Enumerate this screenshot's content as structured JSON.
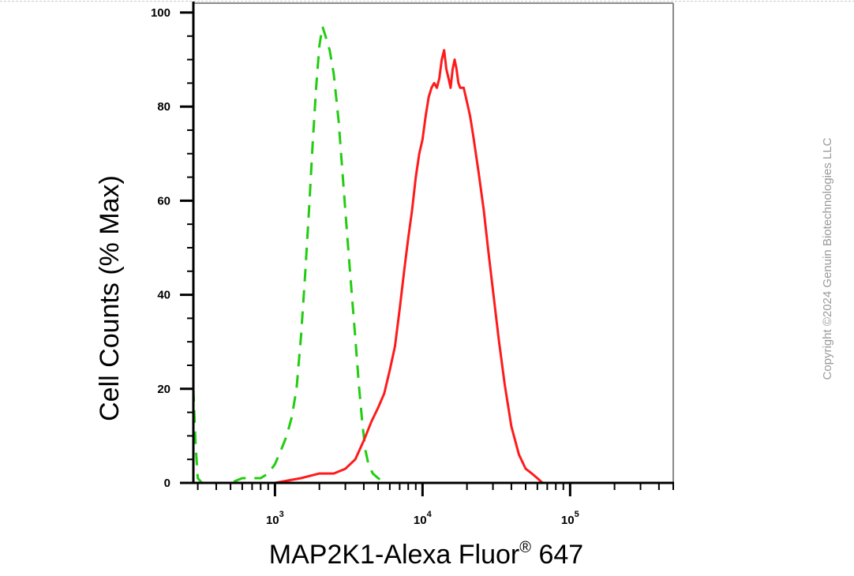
{
  "chart_data": {
    "type": "line",
    "xlabel": "MAP2K1-Alexa Fluor",
    "xlabel_superscript": "®",
    "xlabel_suffix": " 647",
    "ylabel": "Cell Counts (% Max)",
    "x_scale": "log",
    "xlim": [
      280,
      500000
    ],
    "ylim": [
      0,
      102
    ],
    "y_ticks": [
      0,
      20,
      40,
      60,
      80,
      100
    ],
    "x_major_ticks": [
      {
        "value": 1000,
        "base": "10",
        "exp": "3"
      },
      {
        "value": 10000,
        "base": "10",
        "exp": "4"
      },
      {
        "value": 100000,
        "base": "10",
        "exp": "5"
      }
    ],
    "grid": false,
    "series": [
      {
        "style": "dashed",
        "color": "#22cc11",
        "x": [
          280,
          290,
          300,
          320,
          400,
          500,
          600,
          700,
          800,
          900,
          1000,
          1100,
          1200,
          1300,
          1400,
          1500,
          1600,
          1700,
          1800,
          1900,
          2000,
          2100,
          2200,
          2350,
          2500,
          2700,
          2900,
          3100,
          3300,
          3500,
          3700,
          3900,
          4100,
          4300,
          4600,
          5000,
          5500,
          6000,
          7000,
          10000,
          100000,
          500000
        ],
        "y": [
          20,
          8,
          1,
          0,
          0,
          0,
          1,
          1,
          1,
          2,
          4,
          7,
          10,
          14,
          20,
          31,
          44,
          58,
          72,
          84,
          93,
          97,
          95,
          92,
          87,
          77,
          64,
          52,
          41,
          31,
          21,
          13,
          7,
          4,
          2,
          1,
          0,
          0,
          0,
          0,
          0,
          0
        ]
      },
      {
        "style": "solid",
        "color": "#ff1a1a",
        "x": [
          280,
          1000,
          1500,
          2000,
          2500,
          3000,
          3500,
          4000,
          4500,
          5000,
          5500,
          6000,
          6500,
          7000,
          7500,
          8000,
          8500,
          9000,
          9500,
          10000,
          10500,
          11000,
          11500,
          12000,
          12500,
          13000,
          13500,
          14000,
          14500,
          15000,
          15500,
          16000,
          16500,
          17000,
          17500,
          18000,
          19000,
          20000,
          21000,
          22000,
          24000,
          26000,
          28000,
          30000,
          33000,
          36000,
          40000,
          45000,
          50000,
          55000,
          60000,
          65000,
          70000,
          80000,
          100000,
          200000,
          500000
        ],
        "y": [
          0,
          0,
          1,
          2,
          2,
          3,
          5,
          9,
          13,
          16,
          19,
          24,
          29,
          37,
          45,
          52,
          58,
          65,
          70,
          73,
          78,
          82,
          84,
          85,
          84,
          86,
          90,
          92,
          88,
          86,
          84,
          88,
          90,
          88,
          85,
          84,
          84,
          81,
          78,
          74,
          66,
          58,
          49,
          41,
          30,
          21,
          12,
          6,
          3,
          2,
          1,
          0,
          0,
          0,
          0,
          0,
          0
        ]
      }
    ]
  },
  "copyright": "Copyright ©2024 Genuin Biotechnologies LLC"
}
